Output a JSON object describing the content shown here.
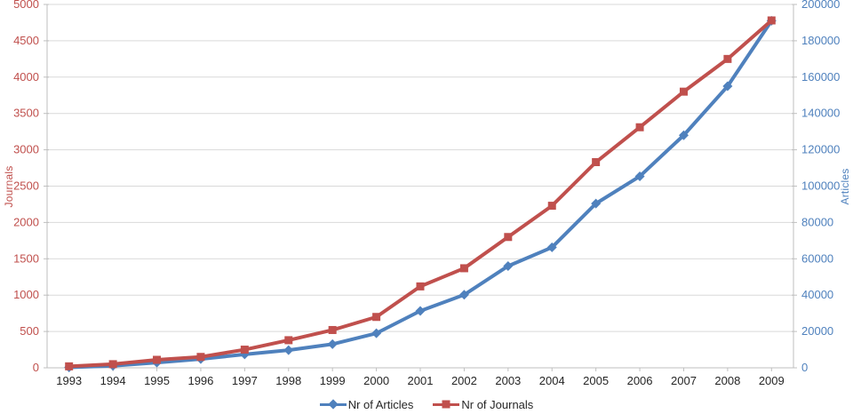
{
  "chart_data": {
    "type": "line",
    "categories": [
      "1993",
      "1994",
      "1995",
      "1996",
      "1997",
      "1998",
      "1999",
      "2000",
      "2001",
      "2002",
      "2003",
      "2004",
      "2005",
      "2006",
      "2007",
      "2008",
      "2009"
    ],
    "series": [
      {
        "name": "Nr of Articles",
        "axis": "right",
        "color": "#4F81BD",
        "marker": "diamond",
        "values": [
          250,
          1100,
          2900,
          4800,
          7400,
          9700,
          13000,
          19000,
          31300,
          40200,
          56000,
          66300,
          90400,
          105400,
          128000,
          155000,
          191000
        ]
      },
      {
        "name": "Nr of Journals",
        "axis": "left",
        "color": "#C0504D",
        "marker": "square",
        "values": [
          20,
          50,
          110,
          150,
          250,
          380,
          520,
          700,
          1120,
          1370,
          1800,
          2230,
          2830,
          3310,
          3800,
          4250,
          4780
        ]
      }
    ],
    "left_axis": {
      "label": "Journals",
      "min": 0,
      "max": 5000,
      "step": 500,
      "color": "#C0504D"
    },
    "right_axis": {
      "label": "Articles",
      "min": 0,
      "max": 200000,
      "step": 20000,
      "color": "#4F81BD"
    },
    "legend_position": "bottom",
    "grid": "horizontal",
    "grid_color": "#D9D9D9",
    "axis_line_color": "#BFBFBF",
    "x_label_color": "#262626"
  }
}
